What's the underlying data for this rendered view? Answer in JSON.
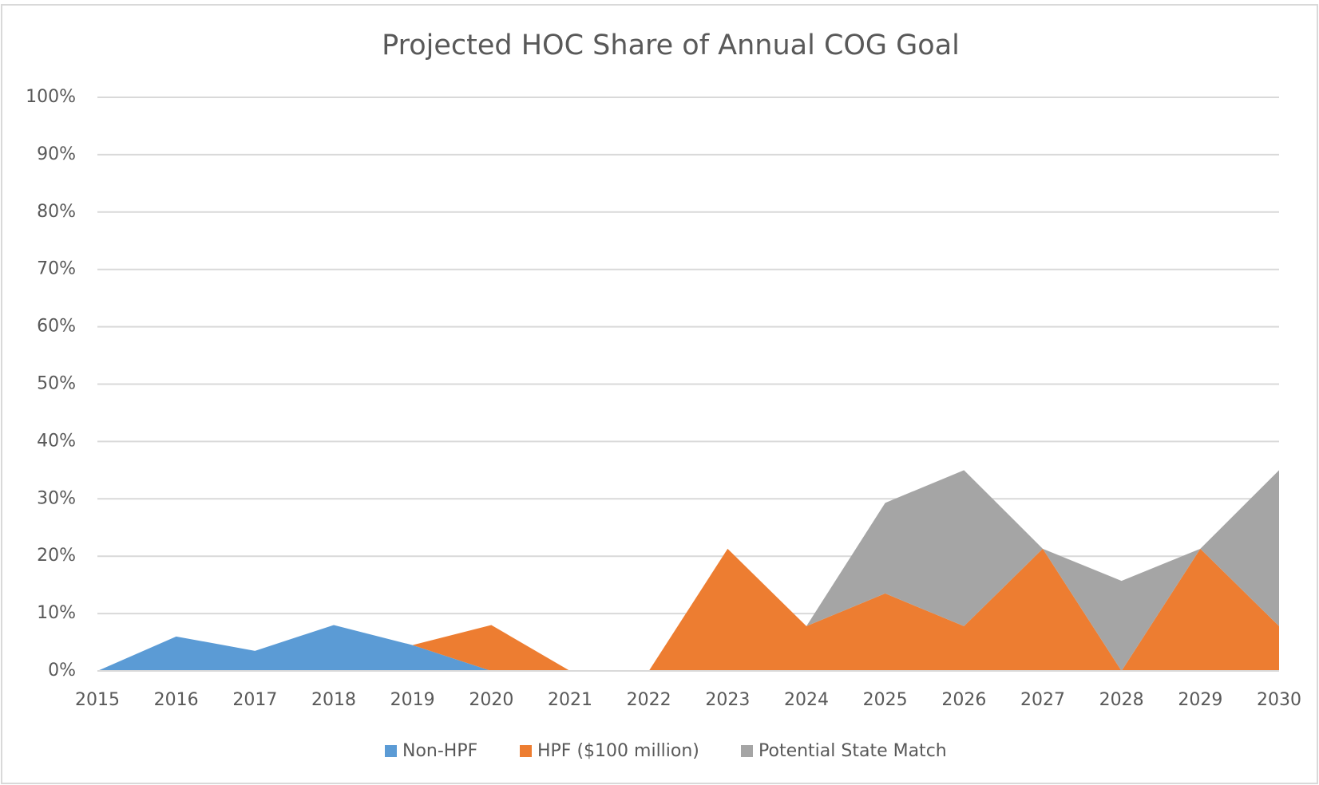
{
  "chart_data": {
    "type": "stacked_area",
    "title": "Projected HOC Share of Annual COG Goal",
    "x": [
      2015,
      2016,
      2017,
      2018,
      2019,
      2020,
      2021,
      2022,
      2023,
      2024,
      2025,
      2026,
      2027,
      2028,
      2029,
      2030
    ],
    "series": [
      {
        "name": "Non-HPF",
        "color": "#5b9bd5",
        "values": [
          0,
          6,
          3.5,
          8,
          4.5,
          0,
          0,
          0,
          0,
          0,
          0,
          0,
          0,
          0,
          0,
          0
        ]
      },
      {
        "name": "HPF ($100 million)",
        "color": "#ed7d31",
        "values": [
          0,
          0,
          0,
          0,
          0,
          8,
          0,
          0,
          21.3,
          7.8,
          13.5,
          7.8,
          21.3,
          0,
          21.3,
          7.8
        ]
      },
      {
        "name": "Potential State Match",
        "color": "#a5a5a5",
        "values": [
          0,
          0,
          0,
          0,
          0,
          0,
          0,
          0,
          0,
          0,
          15.8,
          27.2,
          0,
          15.7,
          0,
          27.2
        ]
      }
    ],
    "xlim": [
      2015,
      2030
    ],
    "ylim": [
      0,
      100
    ],
    "yticks": [
      {
        "value": 0,
        "label": "0%"
      },
      {
        "value": 10,
        "label": "10%"
      },
      {
        "value": 20,
        "label": "20%"
      },
      {
        "value": 30,
        "label": "30%"
      },
      {
        "value": 40,
        "label": "40%"
      },
      {
        "value": 50,
        "label": "50%"
      },
      {
        "value": 60,
        "label": "60%"
      },
      {
        "value": 70,
        "label": "70%"
      },
      {
        "value": 80,
        "label": "80%"
      },
      {
        "value": 90,
        "label": "90%"
      },
      {
        "value": 100,
        "label": "100%"
      }
    ],
    "grid": true,
    "legend": "bottom"
  }
}
